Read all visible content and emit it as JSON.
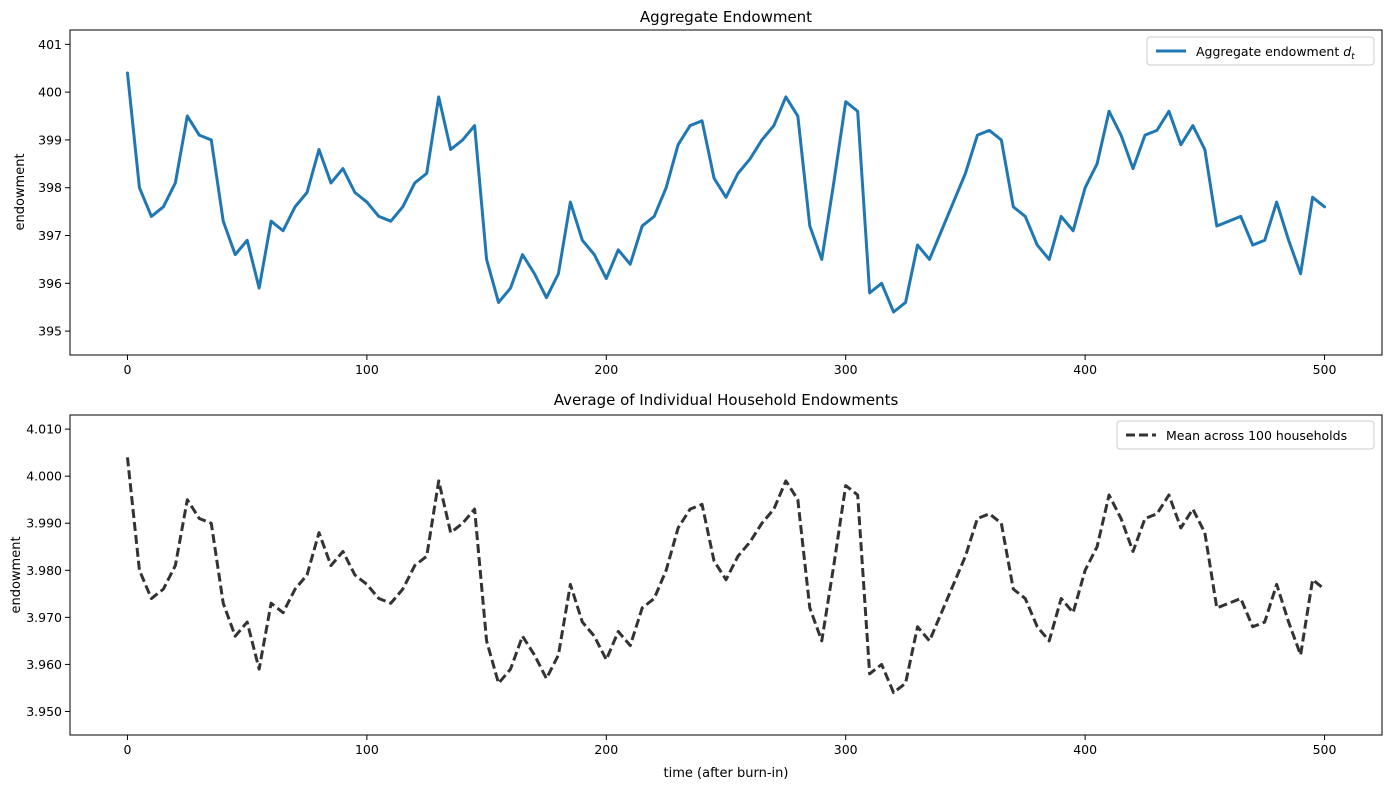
{
  "chart_data": [
    {
      "type": "line",
      "title": "Aggregate Endowment",
      "xlabel": "",
      "ylabel": "endowment",
      "xlim": [
        -24,
        524
      ],
      "ylim": [
        394.5,
        401.3
      ],
      "xticks": [
        0,
        100,
        200,
        300,
        400,
        500
      ],
      "yticks": [
        395,
        396,
        397,
        398,
        399,
        400,
        401
      ],
      "legend_position": "top-right",
      "series": [
        {
          "name": "Aggregate endowment d_t",
          "color": "#1f77b4",
          "style": "solid",
          "x_start": 0,
          "x_step": 5,
          "values": [
            400.4,
            398.0,
            397.4,
            397.6,
            398.1,
            399.5,
            399.1,
            399.0,
            397.3,
            396.6,
            396.9,
            395.9,
            397.3,
            397.1,
            397.6,
            397.9,
            398.8,
            398.1,
            398.4,
            397.9,
            397.7,
            397.4,
            397.3,
            397.6,
            398.1,
            398.3,
            399.9,
            398.8,
            399.0,
            399.3,
            396.5,
            395.6,
            395.9,
            396.6,
            396.2,
            395.7,
            396.2,
            397.7,
            396.9,
            396.6,
            396.1,
            396.7,
            396.4,
            397.2,
            397.4,
            398.0,
            398.9,
            399.3,
            399.4,
            398.2,
            397.8,
            398.3,
            398.6,
            399.0,
            399.3,
            399.9,
            399.5,
            397.2,
            396.5,
            398.1,
            399.8,
            399.6,
            395.8,
            396.0,
            395.4,
            395.6,
            396.8,
            396.5,
            397.1,
            397.7,
            398.3,
            399.1,
            399.2,
            399.0,
            397.6,
            397.4,
            396.8,
            396.5,
            397.4,
            397.1,
            398.0,
            398.5,
            399.6,
            399.1,
            398.4,
            399.1,
            399.2,
            399.6,
            398.9,
            399.3,
            398.8,
            397.2,
            397.3,
            397.4,
            396.8,
            396.9,
            397.7,
            396.9,
            396.2,
            397.8,
            397.6
          ]
        }
      ]
    },
    {
      "type": "line",
      "title": "Average of Individual Household Endowments",
      "xlabel": "time (after burn-in)",
      "ylabel": "endowment",
      "xlim": [
        -24,
        524
      ],
      "ylim": [
        3.945,
        4.013
      ],
      "xticks": [
        0,
        100,
        200,
        300,
        400,
        500
      ],
      "yticks": [
        3.95,
        3.96,
        3.97,
        3.98,
        3.99,
        4.0,
        4.01
      ],
      "legend_position": "top-right",
      "series": [
        {
          "name": "Mean across 100 households",
          "color": "#333333",
          "style": "dashed",
          "x_start": 0,
          "x_step": 5,
          "values": [
            4.004,
            3.98,
            3.974,
            3.976,
            3.981,
            3.995,
            3.991,
            3.99,
            3.973,
            3.966,
            3.969,
            3.959,
            3.973,
            3.971,
            3.976,
            3.979,
            3.988,
            3.981,
            3.984,
            3.979,
            3.977,
            3.974,
            3.973,
            3.976,
            3.981,
            3.983,
            3.999,
            3.988,
            3.99,
            3.993,
            3.965,
            3.956,
            3.959,
            3.966,
            3.962,
            3.957,
            3.962,
            3.977,
            3.969,
            3.966,
            3.961,
            3.967,
            3.964,
            3.972,
            3.974,
            3.98,
            3.989,
            3.993,
            3.994,
            3.982,
            3.978,
            3.983,
            3.986,
            3.99,
            3.993,
            3.999,
            3.995,
            3.972,
            3.965,
            3.981,
            3.998,
            3.996,
            3.958,
            3.96,
            3.954,
            3.956,
            3.968,
            3.965,
            3.971,
            3.977,
            3.983,
            3.991,
            3.992,
            3.99,
            3.976,
            3.974,
            3.968,
            3.965,
            3.974,
            3.971,
            3.98,
            3.985,
            3.996,
            3.991,
            3.984,
            3.991,
            3.992,
            3.996,
            3.989,
            3.993,
            3.988,
            3.972,
            3.973,
            3.974,
            3.968,
            3.969,
            3.977,
            3.969,
            3.962,
            3.978,
            3.976
          ]
        }
      ]
    }
  ]
}
